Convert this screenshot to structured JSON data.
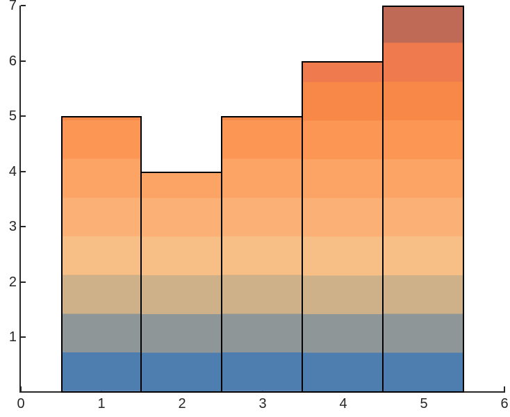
{
  "figure": {
    "background_color": "#ffffff",
    "axes_background_color": "#ffffff",
    "axis_color": "#262626",
    "tick_label_color": "#262626",
    "bar_edge_color": "#000000"
  },
  "chart_data": {
    "type": "bar",
    "title": "",
    "xlabel": "",
    "ylabel": "",
    "grid": false,
    "legend": null,
    "x": [
      1,
      2,
      3,
      4,
      5
    ],
    "values": [
      5,
      4,
      5,
      6,
      7
    ],
    "bar_width": 1,
    "xlim": [
      0,
      6
    ],
    "ylim": [
      0,
      7
    ],
    "x_ticks": [
      0,
      1,
      2,
      3,
      4,
      5,
      6
    ],
    "x_tick_labels": [
      "0",
      "1",
      "2",
      "3",
      "4",
      "5",
      "6"
    ],
    "y_ticks": [
      1,
      2,
      3,
      4,
      5,
      6,
      7
    ],
    "y_tick_labels": [
      "1",
      "2",
      "3",
      "4",
      "5",
      "6",
      "7"
    ],
    "gradient_bands": {
      "description": "horizontal color bands shared across bars, anchored at y=0",
      "count": 10,
      "span": [
        0,
        7
      ],
      "colors_bottom_to_top": [
        "#4d7eaf",
        "#8f9698",
        "#cfb189",
        "#f7be85",
        "#fbb175",
        "#fca465",
        "#fb9655",
        "#f78848",
        "#ee7a4e",
        "#bf6a57"
      ]
    }
  }
}
